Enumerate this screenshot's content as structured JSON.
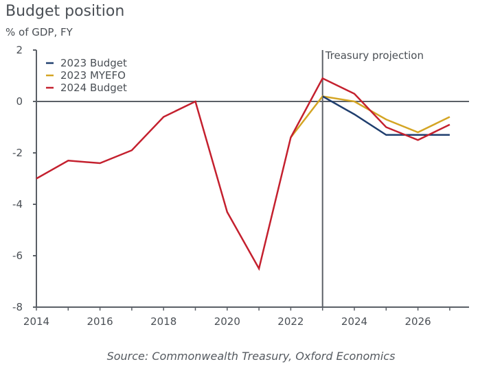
{
  "chart_data": {
    "type": "line",
    "title": "Budget position",
    "subtitle": "% of GDP, FY",
    "xlabel": "",
    "ylabel": "% of GDP, FY",
    "x": [
      2014,
      2015,
      2016,
      2017,
      2018,
      2019,
      2020,
      2021,
      2022,
      2023,
      2024,
      2025,
      2026,
      2027
    ],
    "xlim": [
      2014,
      2027.6
    ],
    "ylim": [
      -8,
      2
    ],
    "xticks": [
      2014,
      2016,
      2018,
      2020,
      2022,
      2024,
      2026
    ],
    "yticks": [
      2,
      0,
      -2,
      -4,
      -6,
      -8
    ],
    "grid": false,
    "legend_position": "top-left",
    "series": [
      {
        "name": "2023 Budget",
        "color": "#1f3e6e",
        "points": [
          [
            2023,
            0.2
          ],
          [
            2024,
            -0.5
          ],
          [
            2025,
            -1.3
          ],
          [
            2026,
            -1.3
          ],
          [
            2027,
            -1.3
          ]
        ]
      },
      {
        "name": "2023 MYEFO",
        "color": "#d4a524",
        "points": [
          [
            2022,
            -1.4
          ],
          [
            2023,
            0.2
          ],
          [
            2024,
            0.0
          ],
          [
            2025,
            -0.7
          ],
          [
            2026,
            -1.2
          ],
          [
            2027,
            -0.6
          ]
        ]
      },
      {
        "name": "2024 Budget",
        "color": "#c4202e",
        "points": [
          [
            2014,
            -3.0
          ],
          [
            2015,
            -2.3
          ],
          [
            2016,
            -2.4
          ],
          [
            2017,
            -1.9
          ],
          [
            2018,
            -0.6
          ],
          [
            2019,
            0.0
          ],
          [
            2020,
            -4.3
          ],
          [
            2021,
            -6.5
          ],
          [
            2022,
            -1.4
          ],
          [
            2023,
            0.9
          ],
          [
            2024,
            0.3
          ],
          [
            2025,
            -1.0
          ],
          [
            2026,
            -1.5
          ],
          [
            2027,
            -0.9
          ]
        ]
      }
    ],
    "annotations": [
      {
        "x": 2023,
        "type": "vertical-line",
        "text": "Treasury projection"
      }
    ],
    "source": "Source: Commonwealth Treasury, Oxford Economics"
  }
}
